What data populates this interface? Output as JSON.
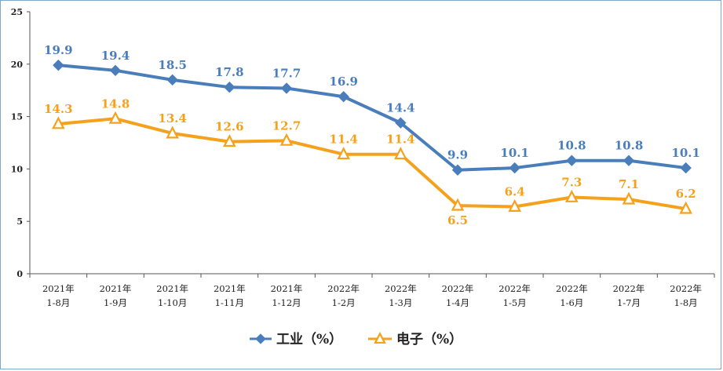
{
  "chart_data": {
    "type": "line",
    "categories": [
      [
        "2021年",
        "1-8月"
      ],
      [
        "2021年",
        "1-9月"
      ],
      [
        "2021年",
        "1-10月"
      ],
      [
        "2021年",
        "1-11月"
      ],
      [
        "2021年",
        "1-12月"
      ],
      [
        "2022年",
        "1-2月"
      ],
      [
        "2022年",
        "1-3月"
      ],
      [
        "2022年",
        "1-4月"
      ],
      [
        "2022年",
        "1-5月"
      ],
      [
        "2022年",
        "1-6月"
      ],
      [
        "2022年",
        "1-7月"
      ],
      [
        "2022年",
        "1-8月"
      ]
    ],
    "series": [
      {
        "name": "工业（%）",
        "color": "#4a7ebb",
        "marker": "diamond",
        "values": [
          19.9,
          19.4,
          18.5,
          17.8,
          17.7,
          16.9,
          14.4,
          9.9,
          10.1,
          10.8,
          10.8,
          10.1
        ],
        "labels": [
          "19.9",
          "19.4",
          "18.5",
          "17.8",
          "17.7",
          "16.9",
          "14.4",
          "9.9",
          "10.1",
          "10.8",
          "10.8",
          "10.1"
        ]
      },
      {
        "name": "电子（%）",
        "color": "#f5a11c",
        "marker": "triangle",
        "values": [
          14.3,
          14.8,
          13.4,
          12.6,
          12.7,
          11.4,
          11.4,
          6.5,
          6.4,
          7.3,
          7.1,
          6.2
        ],
        "labels": [
          "14.3",
          "14.8",
          "13.4",
          "12.6",
          "12.7",
          "11.4",
          "11.4",
          "6.5",
          "6.4",
          "7.3",
          "7.1",
          "6.2"
        ]
      }
    ],
    "yticks": [
      "0",
      "5",
      "10",
      "15",
      "20",
      "25"
    ],
    "ylim": [
      0,
      25
    ],
    "grid": false,
    "legend": "bottom-center"
  }
}
